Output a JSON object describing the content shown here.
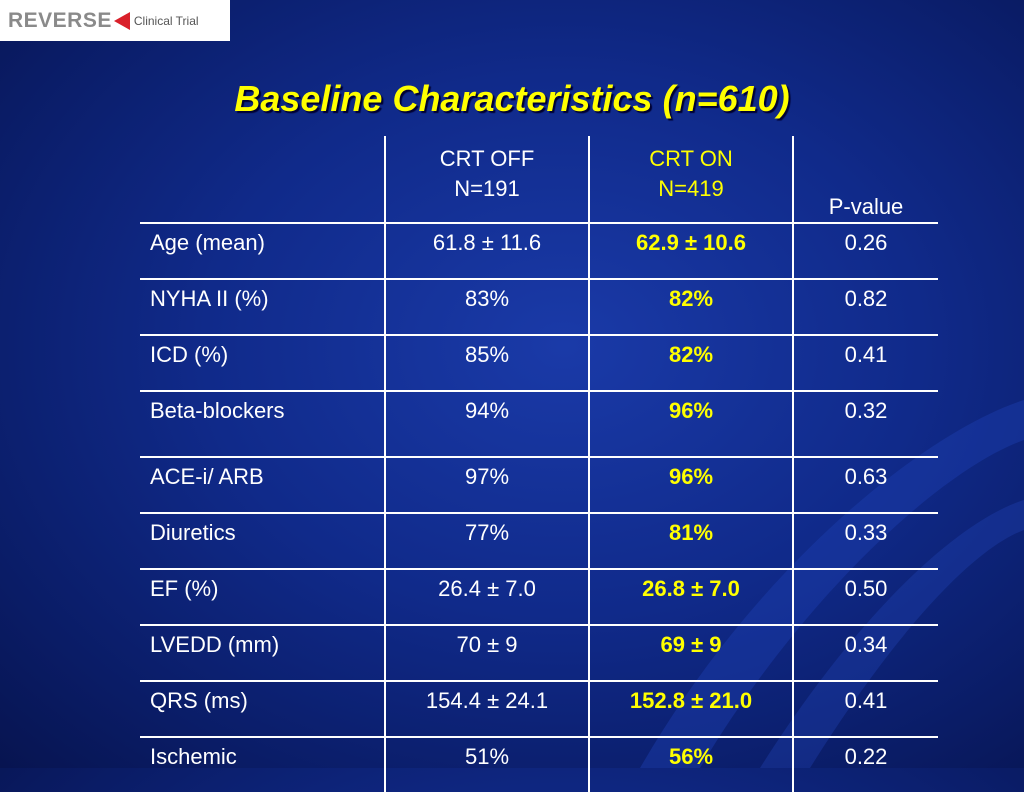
{
  "logo": {
    "word": "REVERSE",
    "sub": "Clinical Trial"
  },
  "title": "Baseline Characteristics (n=610)",
  "table": {
    "headers": {
      "col1_line1": "CRT OFF",
      "col1_line2": "N=191",
      "col2_line1": "CRT ON",
      "col2_line2": "N=419",
      "col3": "P-value"
    },
    "rows": [
      {
        "label": "Age (mean)",
        "off": "61.8 ± 11.6",
        "on": "62.9 ± 10.6",
        "p": "0.26"
      },
      {
        "label": "NYHA II (%)",
        "off": "83%",
        "on": "82%",
        "p": "0.82"
      },
      {
        "label": "ICD (%)",
        "off": "85%",
        "on": "82%",
        "p": "0.41"
      },
      {
        "label": "Beta-blockers",
        "off": "94%",
        "on": "96%",
        "p": "0.32"
      },
      {
        "label": "ACE-i/ ARB",
        "off": "97%",
        "on": "96%",
        "p": "0.63"
      },
      {
        "label": "Diuretics",
        "off": "77%",
        "on": "81%",
        "p": "0.33"
      },
      {
        "label": "EF (%)",
        "off": "26.4 ± 7.0",
        "on": "26.8 ± 7.0",
        "p": "0.50"
      },
      {
        "label": "LVEDD (mm)",
        "off": "70 ± 9",
        "on": "69 ± 9",
        "p": "0.34"
      },
      {
        "label": "QRS (ms)",
        "off": "154.4 ± 24.1",
        "on": "152.8 ± 21.0",
        "p": "0.41"
      },
      {
        "label": "Ischemic",
        "off": "51%",
        "on": "56%",
        "p": "0.22"
      }
    ]
  },
  "colors": {
    "background": "#102a8a",
    "title": "#ffff00",
    "crt_on": "#ffff00",
    "text": "#ffffff"
  }
}
